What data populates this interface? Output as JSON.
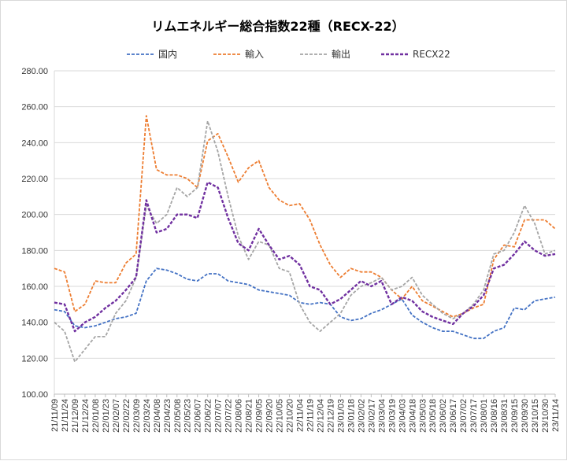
{
  "chart_data": {
    "type": "line",
    "title": "リムエネルギー総合指数22種（RECX-22）",
    "xlabel": "",
    "ylabel": "",
    "ylim": [
      100,
      280
    ],
    "yticks": [
      "100.00",
      "120.00",
      "140.00",
      "160.00",
      "180.00",
      "200.00",
      "220.00",
      "240.00",
      "260.00",
      "280.00"
    ],
    "x": [
      "21/11/09",
      "21/11/24",
      "21/12/09",
      "21/12/24",
      "22/01/08",
      "22/01/23",
      "22/02/07",
      "22/02/22",
      "22/03/09",
      "22/03/24",
      "22/04/08",
      "22/04/23",
      "22/05/08",
      "22/05/23",
      "22/06/07",
      "22/06/22",
      "22/07/07",
      "22/07/22",
      "22/08/06",
      "22/08/21",
      "22/09/05",
      "22/09/20",
      "22/10/05",
      "22/10/20",
      "22/11/04",
      "22/11/19",
      "22/12/04",
      "22/12/19",
      "23/01/03",
      "23/01/18",
      "23/02/02",
      "23/02/17",
      "23/03/04",
      "23/03/19",
      "23/04/03",
      "23/04/18",
      "23/05/03",
      "23/05/18",
      "23/06/02",
      "23/06/17",
      "23/07/02",
      "23/07/17",
      "23/08/01",
      "23/08/16",
      "23/08/31",
      "23/09/15",
      "23/09/30",
      "23/10/15",
      "23/10/30",
      "23/11/14"
    ],
    "grid": true,
    "legend_position": "top",
    "series": [
      {
        "name": "国内",
        "color": "#4472c4",
        "values": [
          147,
          146,
          138,
          137,
          138,
          140,
          142,
          143,
          145,
          163,
          170,
          169,
          167,
          164,
          163,
          167,
          167,
          163,
          162,
          161,
          158,
          157,
          156,
          155,
          151,
          150,
          151,
          150,
          143,
          141,
          142,
          145,
          147,
          150,
          153,
          144,
          140,
          137,
          135,
          135,
          133,
          131,
          131,
          135,
          137,
          148,
          147,
          152,
          153,
          154
        ]
      },
      {
        "name": "輸入",
        "color": "#ed7d31",
        "values": [
          170,
          168,
          146,
          150,
          163,
          162,
          162,
          173,
          178,
          255,
          225,
          222,
          222,
          220,
          215,
          241,
          245,
          232,
          218,
          226,
          230,
          215,
          208,
          205,
          206,
          197,
          183,
          172,
          165,
          170,
          168,
          168,
          165,
          158,
          153,
          160,
          152,
          149,
          146,
          143,
          145,
          148,
          150,
          175,
          183,
          182,
          197,
          197,
          197,
          192
        ]
      },
      {
        "name": "輸出",
        "color": "#a5a5a5",
        "values": [
          140,
          135,
          118,
          125,
          132,
          132,
          145,
          152,
          165,
          205,
          195,
          200,
          215,
          210,
          215,
          252,
          235,
          210,
          188,
          175,
          185,
          183,
          170,
          168,
          150,
          140,
          135,
          140,
          145,
          155,
          160,
          162,
          165,
          158,
          160,
          165,
          155,
          150,
          145,
          142,
          145,
          150,
          158,
          178,
          180,
          190,
          205,
          195,
          178,
          180
        ]
      },
      {
        "name": "RECX22",
        "color": "#7030a0",
        "values": [
          151,
          150,
          135,
          140,
          143,
          148,
          152,
          158,
          165,
          208,
          190,
          192,
          200,
          200,
          198,
          218,
          215,
          198,
          184,
          180,
          192,
          183,
          175,
          177,
          172,
          160,
          158,
          150,
          153,
          158,
          163,
          160,
          163,
          150,
          154,
          152,
          146,
          143,
          141,
          139,
          145,
          149,
          155,
          170,
          172,
          178,
          185,
          180,
          177,
          178
        ]
      }
    ]
  }
}
